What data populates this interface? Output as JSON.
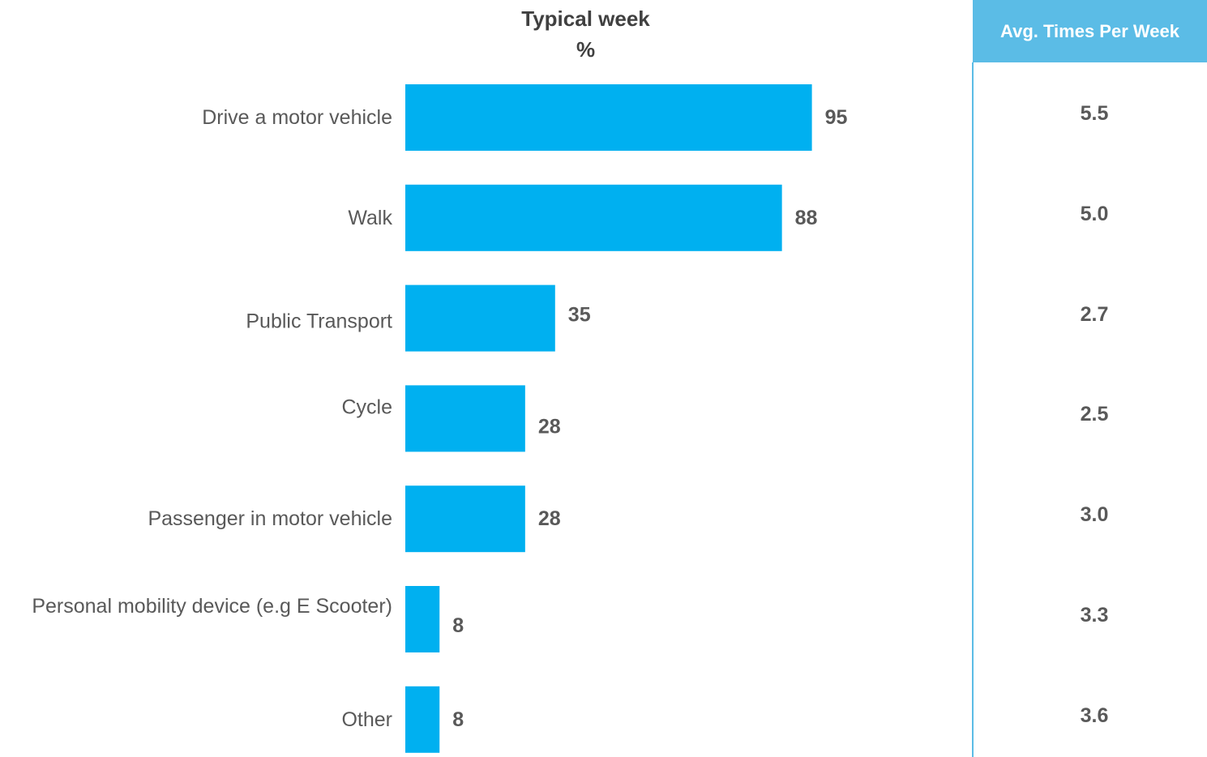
{
  "chart_data": {
    "type": "bar",
    "orientation": "horizontal",
    "title": "Typical week",
    "unit": "%",
    "categories": [
      "Drive a motor vehicle",
      "Walk",
      "Public Transport",
      "Cycle",
      "Passenger in motor vehicle",
      "Personal mobility device (e.g E Scooter)",
      "Other"
    ],
    "values": [
      95,
      88,
      35,
      28,
      28,
      8,
      8
    ],
    "xlim": [
      0,
      100
    ],
    "grid": false,
    "bar_color": "#00b0f0",
    "side_table": {
      "header": "Avg. Times Per Week",
      "values": [
        "5.5",
        "5.0",
        "2.7",
        "2.5",
        "3.0",
        "3.3",
        "3.6"
      ],
      "header_color": "#5bbce6"
    }
  }
}
